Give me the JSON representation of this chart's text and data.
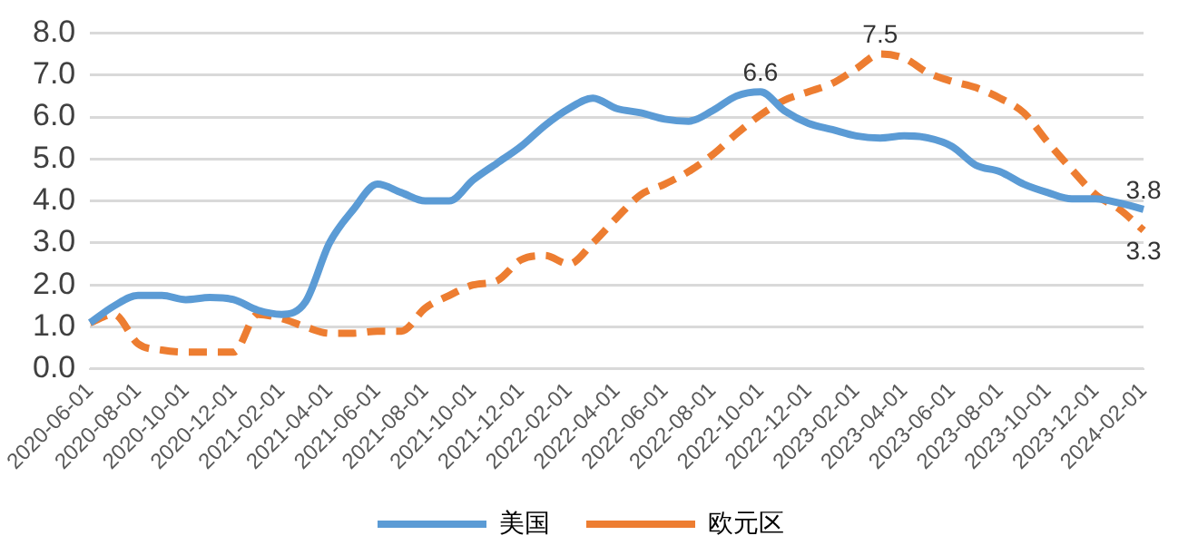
{
  "chart_data": {
    "type": "line",
    "categories": [
      "2020-06-01",
      null,
      "2020-08-01",
      null,
      "2020-10-01",
      null,
      "2020-12-01",
      null,
      "2021-02-01",
      null,
      "2021-04-01",
      null,
      "2021-06-01",
      null,
      "2021-08-01",
      null,
      "2021-10-01",
      null,
      "2021-12-01",
      null,
      "2022-02-01",
      null,
      "2022-04-01",
      null,
      "2022-06-01",
      null,
      "2022-08-01",
      null,
      "2022-10-01",
      null,
      "2022-12-01",
      null,
      "2023-02-01",
      null,
      "2023-04-01",
      null,
      "2023-06-01",
      null,
      "2023-08-01",
      null,
      "2023-10-01",
      null,
      "2023-12-01",
      null,
      "2024-02-01"
    ],
    "series": [
      {
        "name": "美国",
        "color": "#5b9bd5",
        "line_style": "solid",
        "values": [
          1.1,
          1.5,
          1.75,
          1.75,
          1.65,
          1.7,
          1.65,
          1.4,
          1.3,
          1.6,
          3.0,
          3.8,
          4.4,
          4.2,
          4.0,
          4.0,
          4.5,
          4.9,
          5.3,
          5.8,
          6.2,
          6.45,
          6.2,
          6.1,
          5.95,
          5.9,
          6.15,
          6.5,
          6.6,
          6.15,
          5.85,
          5.7,
          5.55,
          5.5,
          5.55,
          5.5,
          5.3,
          4.85,
          4.7,
          4.4,
          4.2,
          4.05,
          4.05,
          3.95,
          3.8
        ],
        "value_labels": [
          null,
          null,
          null,
          null,
          null,
          null,
          null,
          null,
          null,
          null,
          null,
          null,
          null,
          null,
          null,
          null,
          null,
          null,
          null,
          null,
          null,
          null,
          null,
          null,
          null,
          null,
          null,
          null,
          "6.6",
          null,
          null,
          null,
          null,
          null,
          null,
          null,
          null,
          null,
          null,
          null,
          null,
          null,
          null,
          null,
          "3.8"
        ]
      },
      {
        "name": "欧元区",
        "color": "#ed7d31",
        "line_style": "dashed",
        "values": [
          1.1,
          1.3,
          0.6,
          0.45,
          0.4,
          0.4,
          0.4,
          1.3,
          1.2,
          1.0,
          0.85,
          0.85,
          0.9,
          0.9,
          1.45,
          1.75,
          2.0,
          2.1,
          2.6,
          2.7,
          2.5,
          3.0,
          3.6,
          4.15,
          4.4,
          4.7,
          5.1,
          5.6,
          6.05,
          6.4,
          6.6,
          6.8,
          7.15,
          7.5,
          7.4,
          7.05,
          6.85,
          6.7,
          6.45,
          6.1,
          5.4,
          4.75,
          4.15,
          3.8,
          3.3
        ],
        "value_labels": [
          null,
          null,
          null,
          null,
          null,
          null,
          null,
          null,
          null,
          null,
          null,
          null,
          null,
          null,
          null,
          null,
          null,
          null,
          null,
          null,
          null,
          null,
          null,
          null,
          null,
          null,
          null,
          null,
          null,
          null,
          null,
          null,
          null,
          "7.5",
          null,
          null,
          null,
          null,
          null,
          null,
          null,
          null,
          null,
          null,
          "3.3"
        ]
      }
    ],
    "ylim": [
      0,
      8
    ],
    "yticks": [
      {
        "value": 0,
        "label": "0.0"
      },
      {
        "value": 1,
        "label": "1.0"
      },
      {
        "value": 2,
        "label": "2.0"
      },
      {
        "value": 3,
        "label": "3.0"
      },
      {
        "value": 4,
        "label": "4.0"
      },
      {
        "value": 5,
        "label": "5.0"
      },
      {
        "value": 6,
        "label": "6.0"
      },
      {
        "value": 7,
        "label": "7.0"
      },
      {
        "value": 8,
        "label": "8.0"
      }
    ],
    "grid": "y",
    "legend": "bottom",
    "marker": "none"
  }
}
